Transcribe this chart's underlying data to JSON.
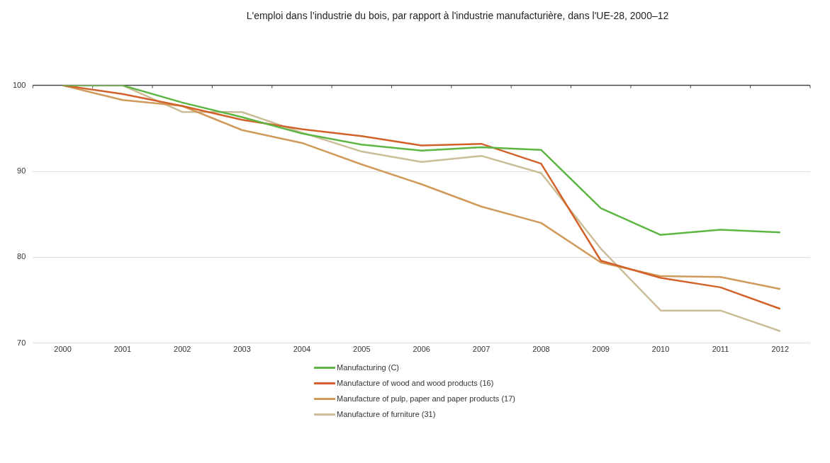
{
  "chart_data": {
    "type": "line",
    "title": "L'emploi dans l’industrie du bois, par rapport à l'industrie manufacturière, dans l'UE-28, 2000–12",
    "categories": [
      "2000",
      "2001",
      "2002",
      "2003",
      "2004",
      "2005",
      "2006",
      "2007",
      "2008",
      "2009",
      "2010",
      "2011",
      "2012"
    ],
    "series": [
      {
        "name": "Manufacturing (C)",
        "color": "#5db543",
        "values": [
          100,
          100,
          98,
          96.3,
          94.4,
          93.1,
          92.4,
          92.8,
          92.5,
          85.7,
          82.6,
          83.2,
          82.9
        ]
      },
      {
        "name": "Manufacture of wood and wood products (16)",
        "color": "#d2622a",
        "values": [
          100,
          99,
          97.6,
          96,
          94.9,
          94.1,
          93,
          93.2,
          90.9,
          79.6,
          77.6,
          76.5,
          74
        ]
      },
      {
        "name": "Manufacture of pulp, paper and paper products (17)",
        "color": "#d09a5a",
        "values": [
          100,
          98.3,
          97.6,
          94.8,
          93.3,
          90.8,
          88.5,
          85.9,
          84,
          79.4,
          77.8,
          77.7,
          76.3
        ]
      },
      {
        "name": "Manufacture of furniture (31)",
        "color": "#cbbd98",
        "values": [
          100,
          100,
          96.9,
          96.9,
          94.5,
          92.3,
          91.1,
          91.8,
          89.8,
          81,
          73.8,
          73.8,
          71.4
        ]
      }
    ],
    "ylim": [
      70,
      100
    ],
    "yticks": [
      70,
      80,
      90,
      100
    ],
    "grid": "y",
    "legend": "bottom",
    "marker": "none",
    "line_style": "solid"
  }
}
